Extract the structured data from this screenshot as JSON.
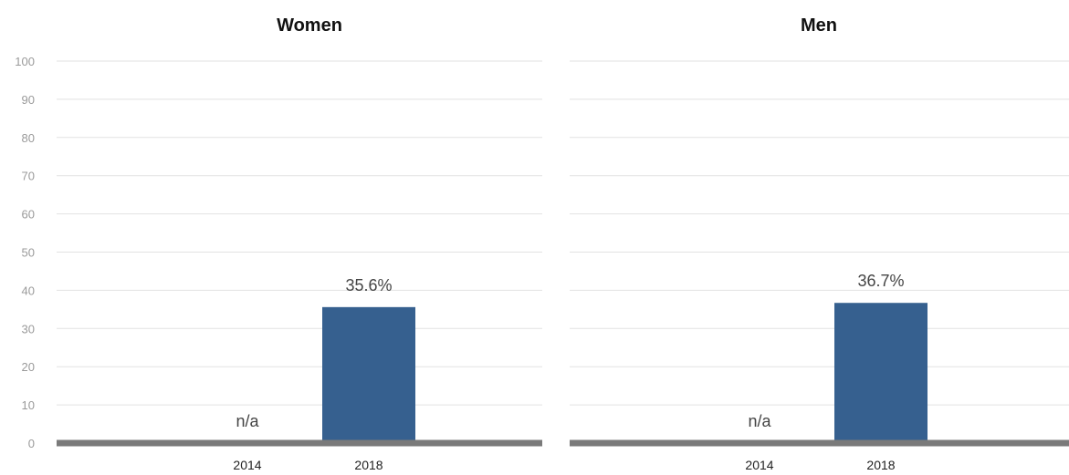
{
  "chart_data": {
    "type": "bar",
    "ylim": [
      0,
      100
    ],
    "yticks": [
      0,
      10,
      20,
      30,
      40,
      50,
      60,
      70,
      80,
      90,
      100
    ],
    "grid": true,
    "bar_color": "#36608f",
    "baseline_color": "#7a7a7a",
    "panels": [
      {
        "title": "Women",
        "categories": [
          "2014",
          "2018"
        ],
        "values": [
          null,
          35.6
        ],
        "labels": [
          "n/a",
          "35.6%"
        ]
      },
      {
        "title": "Men",
        "categories": [
          "2014",
          "2018"
        ],
        "values": [
          null,
          36.7
        ],
        "labels": [
          "n/a",
          "36.7%"
        ]
      }
    ]
  }
}
